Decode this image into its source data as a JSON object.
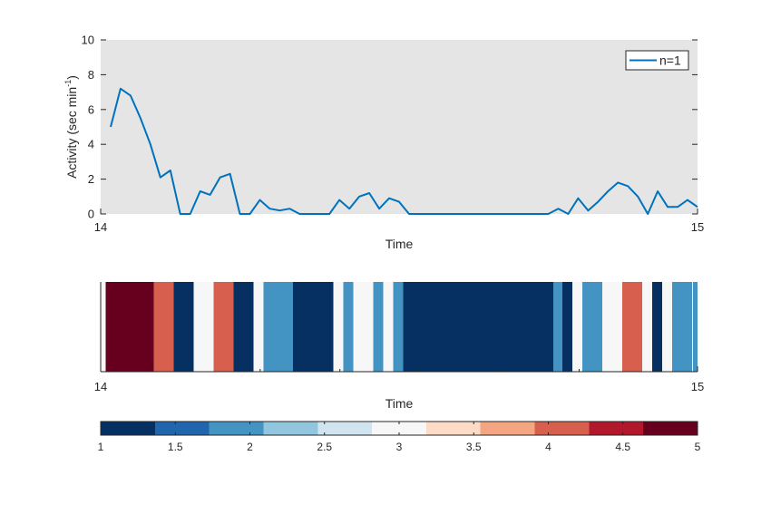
{
  "chart_data": [
    {
      "type": "line",
      "xlabel": "Time",
      "ylabel": "Activity (sec min",
      "ylabel_sup": "-1",
      "ylabel_close": ")",
      "xlim": [
        14,
        15
      ],
      "ylim": [
        0,
        10
      ],
      "xticks": [
        14,
        15
      ],
      "xtick_labels": [
        "14",
        "15"
      ],
      "yticks": [
        0,
        2,
        4,
        6,
        8,
        10
      ],
      "ytick_labels": [
        "0",
        "2",
        "4",
        "6",
        "8",
        "10"
      ],
      "grid": false,
      "background": "#e5e5e5",
      "legend_position": "top-right",
      "series": [
        {
          "name": "n=1",
          "color": "#0072bd",
          "x": [
            14.0167,
            14.0333,
            14.05,
            14.0667,
            14.0833,
            14.1,
            14.1167,
            14.1333,
            14.15,
            14.1667,
            14.1833,
            14.2,
            14.2167,
            14.2333,
            14.25,
            14.2667,
            14.2833,
            14.3,
            14.3167,
            14.3333,
            14.35,
            14.3667,
            14.3833,
            14.4,
            14.4167,
            14.4333,
            14.45,
            14.4667,
            14.4833,
            14.5,
            14.5167,
            14.5333,
            14.55,
            14.5667,
            14.5833,
            14.6,
            14.6167,
            14.6333,
            14.65,
            14.6667,
            14.6833,
            14.7,
            14.7167,
            14.7333,
            14.75,
            14.7667,
            14.7833,
            14.8,
            14.8167,
            14.8333,
            14.85,
            14.8667,
            14.8833,
            14.9,
            14.9167,
            14.9333,
            14.95,
            14.9667,
            14.9833,
            15.0
          ],
          "y": [
            5.0,
            7.2,
            6.8,
            5.5,
            4.0,
            2.1,
            2.5,
            0.0,
            0.0,
            1.3,
            1.1,
            2.1,
            2.3,
            0.0,
            0.0,
            0.8,
            0.3,
            0.2,
            0.3,
            0.0,
            0.0,
            0.0,
            0.0,
            0.8,
            0.3,
            1.0,
            1.2,
            0.3,
            0.9,
            0.7,
            0.0,
            0.0,
            0.0,
            0.0,
            0.0,
            0.0,
            0.0,
            0.0,
            0.0,
            0.0,
            0.0,
            0.0,
            0.0,
            0.0,
            0.0,
            0.3,
            0.0,
            0.9,
            0.2,
            0.7,
            1.3,
            1.8,
            1.6,
            1.0,
            0.0,
            1.3,
            0.4,
            0.4,
            0.8,
            0.4
          ]
        }
      ]
    },
    {
      "type": "heatmap",
      "xlabel": "Time",
      "xlim": [
        14,
        15
      ],
      "xticks": [
        14,
        15
      ],
      "xtick_labels": [
        "14",
        "15"
      ],
      "cell_width": 0.0167,
      "segments": [
        {
          "start": 14.0,
          "end": 14.0087,
          "value": 3
        },
        {
          "start": 14.0087,
          "end": 14.0888,
          "value": 5
        },
        {
          "start": 14.0888,
          "end": 14.1223,
          "value": 4
        },
        {
          "start": 14.1223,
          "end": 14.1558,
          "value": 1
        },
        {
          "start": 14.1558,
          "end": 14.1893,
          "value": 3
        },
        {
          "start": 14.1893,
          "end": 14.2228,
          "value": 4
        },
        {
          "start": 14.2228,
          "end": 14.2563,
          "value": 1
        },
        {
          "start": 14.2563,
          "end": 14.2725,
          "value": 3
        },
        {
          "start": 14.2725,
          "end": 14.3225,
          "value": 2
        },
        {
          "start": 14.3225,
          "end": 14.3896,
          "value": 1
        },
        {
          "start": 14.3896,
          "end": 14.4063,
          "value": 3
        },
        {
          "start": 14.4063,
          "end": 14.4231,
          "value": 2
        },
        {
          "start": 14.4231,
          "end": 14.4566,
          "value": 3
        },
        {
          "start": 14.4566,
          "end": 14.4734,
          "value": 2
        },
        {
          "start": 14.4734,
          "end": 14.4901,
          "value": 3
        },
        {
          "start": 14.4901,
          "end": 14.5069,
          "value": 2
        },
        {
          "start": 14.5069,
          "end": 14.758,
          "value": 1
        },
        {
          "start": 14.758,
          "end": 14.7732,
          "value": 2
        },
        {
          "start": 14.7732,
          "end": 14.7899,
          "value": 1
        },
        {
          "start": 14.7899,
          "end": 14.8067,
          "value": 3
        },
        {
          "start": 14.8067,
          "end": 14.8402,
          "value": 2
        },
        {
          "start": 14.8402,
          "end": 14.8737,
          "value": 3
        },
        {
          "start": 14.8737,
          "end": 14.9072,
          "value": 4
        },
        {
          "start": 14.9072,
          "end": 14.9239,
          "value": 3
        },
        {
          "start": 14.9239,
          "end": 14.9406,
          "value": 1
        },
        {
          "start": 14.9406,
          "end": 14.9574,
          "value": 3
        },
        {
          "start": 14.9574,
          "end": 14.9909,
          "value": 2
        },
        {
          "start": 14.9909,
          "end": 14.9924,
          "value": 3
        },
        {
          "start": 14.9924,
          "end": 15.0,
          "value": 2
        }
      ]
    },
    {
      "type": "colorbar",
      "range": [
        1,
        5
      ],
      "ticks": [
        1,
        1.5,
        2,
        2.5,
        3,
        3.5,
        4,
        4.5,
        5
      ],
      "tick_labels": [
        "1",
        "1.5",
        "2",
        "2.5",
        "3",
        "3.5",
        "4",
        "4.5",
        "5"
      ],
      "colors": [
        "#053061",
        "#2166ac",
        "#4393c3",
        "#92c5de",
        "#d1e5f0",
        "#f7f7f7",
        "#fddbc7",
        "#f4a582",
        "#d6604d",
        "#b2182b",
        "#67001f"
      ]
    }
  ]
}
